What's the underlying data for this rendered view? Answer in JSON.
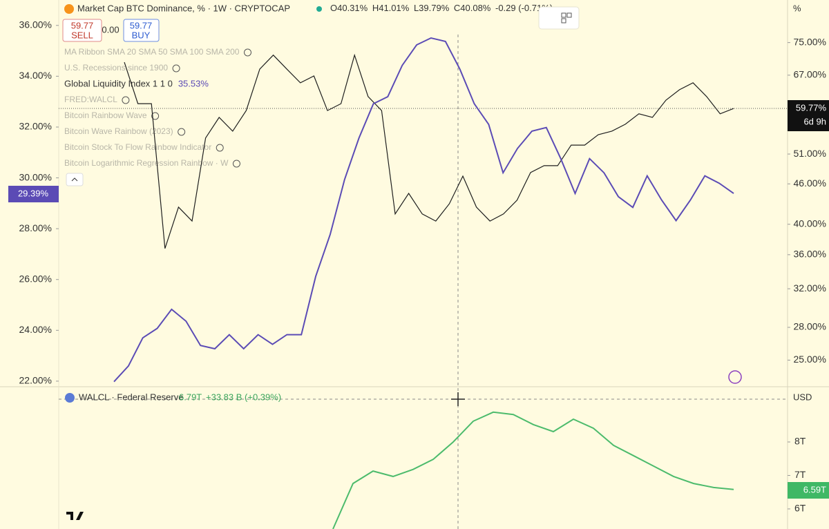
{
  "header": {
    "symbol": "Market Cap BTC Dominance, % · 1W · CRYPTOCAP",
    "open": "O40.31%",
    "high": "H41.01%",
    "low": "L39.79%",
    "close": "C40.08%",
    "change": "-0.29 (-0.71%)"
  },
  "trade": {
    "sell_price": "59.77",
    "sell": "SELL",
    "spread": "0.00",
    "buy_price": "59.77",
    "buy": "BUY"
  },
  "indicators": [
    {
      "name": "MA Ribbon SMA 20 SMA 50 SMA 100 SMA 200"
    },
    {
      "name": "U.S. Recessions since 1900"
    },
    {
      "name": "Global Liquidity Index 1 1 0",
      "value": "35.53%"
    },
    {
      "name": "FRED:WALCL"
    },
    {
      "name": "Bitcoin Rainbow Wave"
    },
    {
      "name": "Bitcoin Wave Rainbow (2023)"
    },
    {
      "name": "Bitcoin Stock To Flow Rainbow Indicator"
    },
    {
      "name": "Bitcoin Logarithmic Regression Rainbow · W"
    }
  ],
  "price_tags": {
    "left": "29.39%",
    "right": "59.77%",
    "countdown": "6d 9h",
    "right_unit": "%"
  },
  "lower_pane": {
    "title": "WALCL · Federal Reserve",
    "value": "6.79T",
    "change": "+33.83 B (+0.39%)",
    "unit": "USD",
    "last": "6.59T"
  },
  "chart_data": [
    {
      "type": "line",
      "ylim": [
        21.78,
        37.0
      ],
      "yticks": [
        {
          "value": 22,
          "label": "22.00%"
        },
        {
          "value": 24,
          "label": "24.00%"
        },
        {
          "value": 26,
          "label": "26.00%"
        },
        {
          "value": 28,
          "label": "28.00%"
        },
        {
          "value": 30,
          "label": "30.00%"
        },
        {
          "value": 32,
          "label": "32.00%"
        },
        {
          "value": 34,
          "label": "34.00%"
        },
        {
          "value": 36,
          "label": "36.00%"
        }
      ],
      "y2lim": [
        22.8,
        86.9
      ],
      "y2scale": "log",
      "y2ticks": [
        {
          "value": 25,
          "label": "25.00%"
        },
        {
          "value": 28,
          "label": "28.00%"
        },
        {
          "value": 32,
          "label": "32.00%"
        },
        {
          "value": 36,
          "label": "36.00%"
        },
        {
          "value": 40,
          "label": "40.00%"
        },
        {
          "value": 46,
          "label": "46.00%"
        },
        {
          "value": 51,
          "label": "51.00%"
        },
        {
          "value": 67,
          "label": "67.00%"
        },
        {
          "value": 75,
          "label": "75.00%"
        }
      ],
      "series": [
        {
          "color": "#1e1e1e",
          "values": [
            34.55,
            32.92,
            32.92,
            27.22,
            28.85,
            28.3,
            31.57,
            32.38,
            31.84,
            32.65,
            34.28,
            34.83,
            34.28,
            33.74,
            34.01,
            32.65,
            32.92,
            34.83,
            33.2,
            32.65,
            28.58,
            29.39,
            28.58,
            28.3,
            28.98,
            30.07,
            28.85,
            28.3,
            28.58,
            29.12,
            30.21,
            30.48,
            30.48,
            31.29,
            31.29,
            31.7,
            31.84,
            32.11,
            32.52,
            32.38,
            33.06,
            33.47,
            33.74,
            33.2,
            32.52,
            32.73
          ]
        },
        {
          "color": "#5b4bb5",
          "axis": "y2",
          "values": [
            23.2,
            24.5,
            27.0,
            27.9,
            29.8,
            28.6,
            26.3,
            26.0,
            27.3,
            26.0,
            27.3,
            26.4,
            27.3,
            27.3,
            33.4,
            38.6,
            46.7,
            53.9,
            60.7,
            62.2,
            69.3,
            74.4,
            76.2,
            75.3,
            68.4,
            60.7,
            56.5,
            47.8,
            52.0,
            55.2,
            55.9,
            50.2,
            44.5,
            50.2,
            47.8,
            44.0,
            42.4,
            47.3,
            43.5,
            40.5,
            43.5,
            47.3,
            46.1,
            44.5
          ]
        }
      ]
    },
    {
      "type": "line",
      "ylim": [
        5.4,
        9.65
      ],
      "yticks": [
        {
          "value": 6,
          "label": "6T"
        },
        {
          "value": 7,
          "label": "7T"
        },
        {
          "value": 8,
          "label": "8T"
        }
      ],
      "series": [
        {
          "color": "#4cbb6c",
          "values": [
            5.4,
            6.76,
            7.13,
            6.97,
            7.18,
            7.48,
            8.0,
            8.62,
            8.89,
            8.82,
            8.52,
            8.31,
            8.68,
            8.41,
            7.9,
            7.59,
            7.28,
            6.97,
            6.76,
            6.64,
            6.58
          ]
        }
      ]
    }
  ]
}
